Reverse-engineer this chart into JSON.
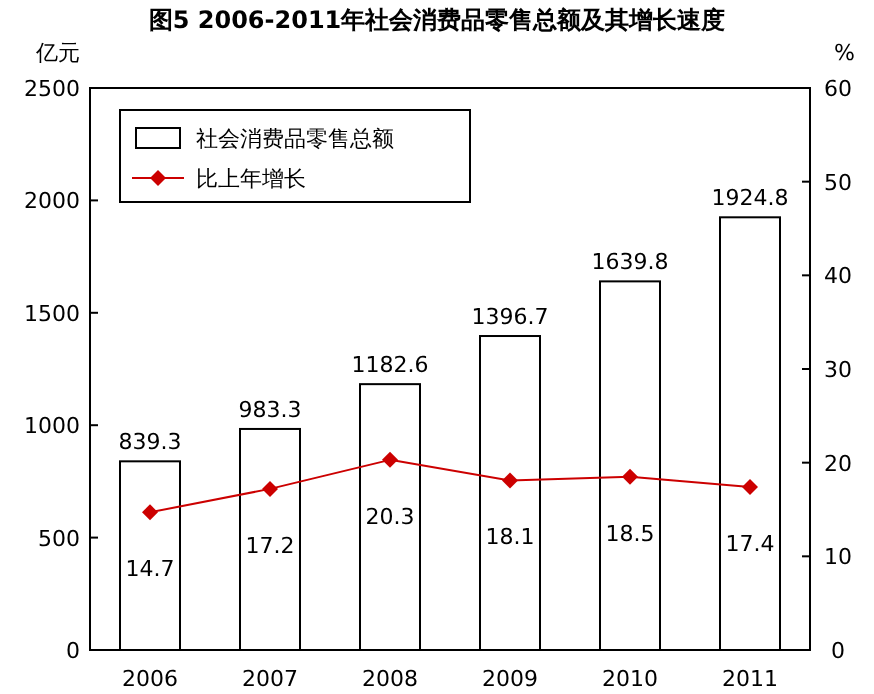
{
  "chart_data": {
    "type": "bar",
    "title": "图5 2006-2011年社会消费品零售总额及其增长速度",
    "ylabel": "亿元",
    "y2label": "%",
    "categories": [
      "2006",
      "2007",
      "2008",
      "2009",
      "2010",
      "2011"
    ],
    "series": [
      {
        "name": "社会消费品零售总额",
        "color": "#ffffff",
        "values": [
          839.3,
          983.3,
          1182.6,
          1396.7,
          1639.8,
          1924.8
        ]
      },
      {
        "name": "比上年增长",
        "type": "line",
        "axis": "y2",
        "color": "#cc0000",
        "marker": "diamond",
        "values": [
          14.7,
          17.2,
          20.3,
          18.1,
          18.5,
          17.4
        ]
      }
    ],
    "ylim": [
      0,
      2500
    ],
    "yticks": [
      0,
      500,
      1000,
      1500,
      2000,
      2500
    ],
    "y2lim": [
      0,
      60
    ],
    "y2ticks": [
      0,
      10,
      20,
      30,
      40,
      50,
      60
    ],
    "data_labels": true,
    "legend": "top left"
  }
}
